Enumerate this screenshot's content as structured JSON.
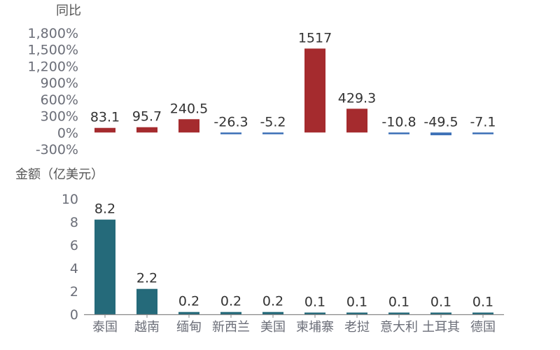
{
  "chart_data": [
    {
      "type": "bar",
      "title": "",
      "ylabel": "同比",
      "categories": [
        "泰国",
        "越南",
        "缅甸",
        "新西兰",
        "美国",
        "柬埔寨",
        "老挝",
        "意大利",
        "土耳其",
        "德国"
      ],
      "values": [
        83.1,
        95.7,
        240.5,
        -26.3,
        -5.2,
        1517,
        429.3,
        -10.8,
        -49.5,
        -7.1
      ],
      "data_labels": [
        "83.1",
        "95.7",
        "240.5",
        "-26.3",
        "-5.2",
        "1517",
        "429.3",
        "-10.8",
        "-49.5",
        "-7.1"
      ],
      "ylim": [
        -300,
        1800
      ],
      "yticks": [
        "1,800%",
        "1,500%",
        "1,200%",
        "900%",
        "600%",
        "300%",
        "0%",
        "-300%"
      ],
      "ytick_values": [
        1800,
        1500,
        1200,
        900,
        600,
        300,
        0,
        -300
      ],
      "colors": {
        "positive": "#a52b2e",
        "negative": "#3b6fb6"
      },
      "grid": false
    },
    {
      "type": "bar",
      "title": "",
      "ylabel": "金额（亿美元）",
      "categories": [
        "泰国",
        "越南",
        "缅甸",
        "新西兰",
        "美国",
        "柬埔寨",
        "老挝",
        "意大利",
        "土耳其",
        "德国"
      ],
      "values": [
        8.2,
        2.2,
        0.2,
        0.2,
        0.2,
        0.1,
        0.1,
        0.1,
        0.1,
        0.1
      ],
      "data_labels": [
        "8.2",
        "2.2",
        "0.2",
        "0.2",
        "0.2",
        "0.1",
        "0.1",
        "0.1",
        "0.1",
        "0.1"
      ],
      "ylim": [
        0,
        10
      ],
      "yticks": [
        "10",
        "8",
        "6",
        "4",
        "2",
        "0"
      ],
      "ytick_values": [
        10,
        8,
        6,
        4,
        2,
        0
      ],
      "colors": {
        "bar": "#256a7a"
      },
      "grid": false
    }
  ]
}
